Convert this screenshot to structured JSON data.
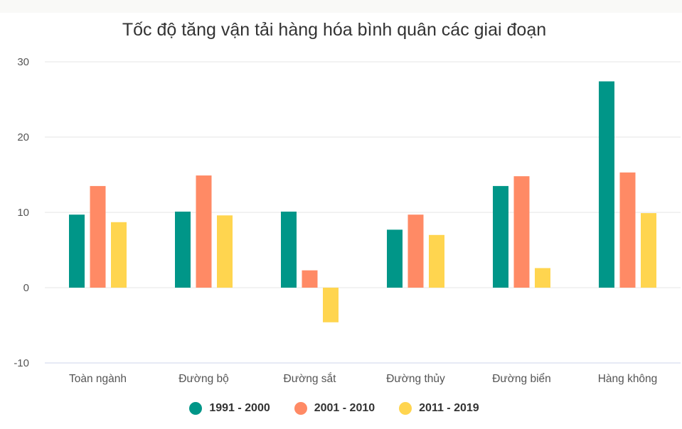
{
  "chart_data": {
    "type": "bar",
    "title": "Tốc độ tăng vận tải hàng hóa bình quân các giai đoạn",
    "xlabel": "",
    "ylabel": "",
    "categories": [
      "Toàn ngành",
      "Đường bộ",
      "Đường sắt",
      "Đường thủy",
      "Đường biển",
      "Hàng không"
    ],
    "series": [
      {
        "name": "1991 - 2000",
        "color": "#009688",
        "values": [
          9.7,
          10.1,
          10.1,
          7.7,
          13.5,
          27.4
        ]
      },
      {
        "name": "2001 - 2010",
        "color": "#ff8a65",
        "values": [
          13.5,
          14.9,
          2.3,
          9.7,
          14.8,
          15.3
        ]
      },
      {
        "name": "2011 - 2019",
        "color": "#ffd54f",
        "values": [
          8.7,
          9.6,
          -4.6,
          7.0,
          2.6,
          9.9
        ]
      }
    ],
    "ylim": [
      -10,
      30
    ],
    "yticks": [
      -10,
      0,
      10,
      20,
      30
    ],
    "grid": true,
    "legend_position": "bottom"
  }
}
